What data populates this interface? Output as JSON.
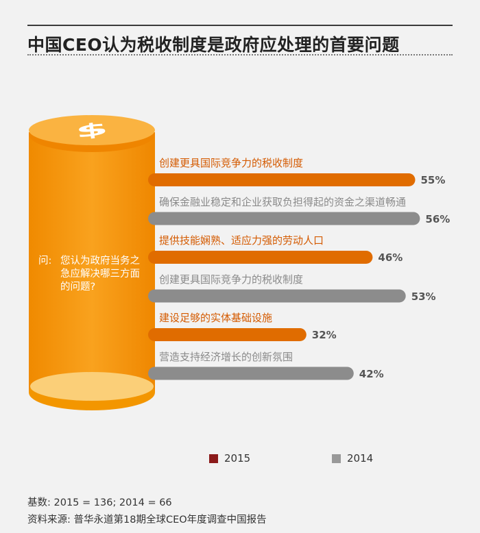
{
  "title": "中国CEO认为税收制度是政府应处理的首要问题",
  "question": {
    "label": "问:",
    "text": "您认为政府当务之急应解决哪三方面的问题?"
  },
  "coin_symbol": "$",
  "chart_data": {
    "type": "bar",
    "orientation": "horizontal",
    "categories": [
      "创建更具国际竞争力的税收制度",
      "确保金融业稳定和企业获取负担得起的资金之渠道畅通",
      "提供技能娴熟、适应力强的劳动人口",
      "创建更具国际竞争力的税收制度",
      "建设足够的实体基础设施",
      "营造支持经济增长的创新氛围"
    ],
    "value_labels": [
      "55%",
      "56%",
      "46%",
      "53%",
      "32%",
      "42%"
    ],
    "values": [
      55,
      56,
      46,
      53,
      32,
      42
    ],
    "series_of_bar": [
      "2015",
      "2014",
      "2015",
      "2014",
      "2015",
      "2014"
    ],
    "series": [
      {
        "name": "2015",
        "color": "#e06c00"
      },
      {
        "name": "2014",
        "color": "#8c8c8c"
      }
    ],
    "xlim": [
      0,
      100
    ],
    "legend_position": "bottom"
  },
  "legend": [
    {
      "label": "2015",
      "color": "#8b1a1a"
    },
    {
      "label": "2014",
      "color": "#999999"
    }
  ],
  "footnotes": {
    "base": "基数: 2015 = 136; 2014 = 66",
    "source": "资料来源: 普华永道第18期全球CEO年度调查中国报告"
  }
}
